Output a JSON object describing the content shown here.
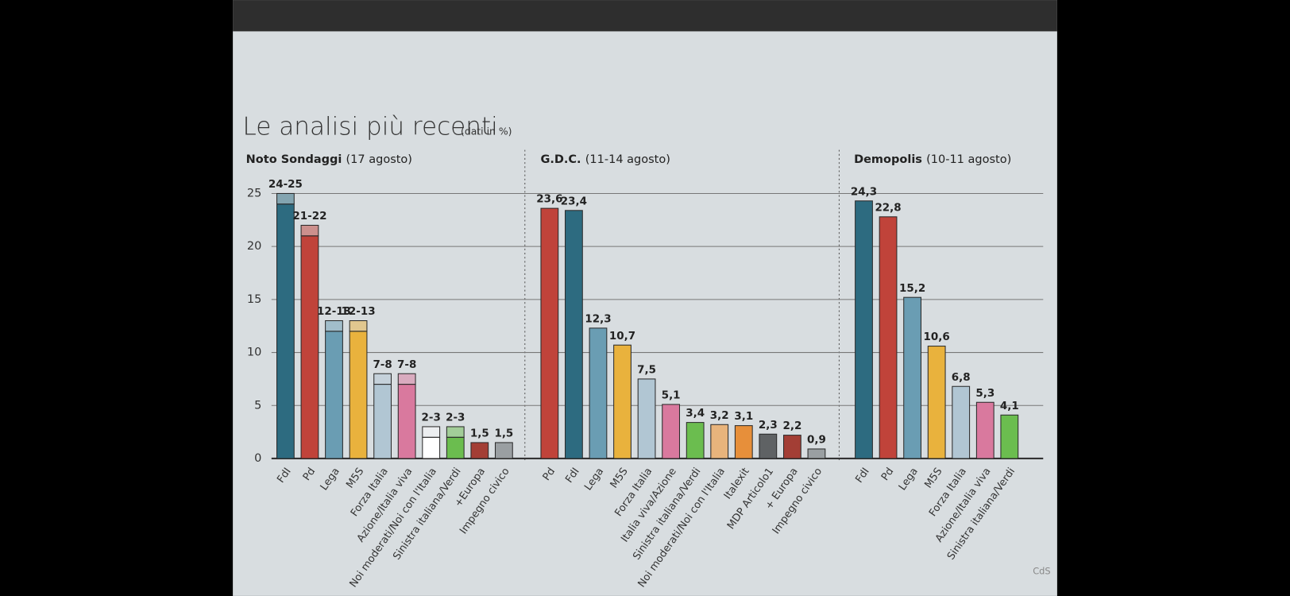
{
  "title": "Le analisi più recenti",
  "title_note": "(dati in %)",
  "source": "CdS",
  "chart_data": [
    {
      "type": "range",
      "name": "Noto Sondaggi",
      "date": "(17 agosto)",
      "categories": [
        "FdI",
        "Pd",
        "Lega",
        "M5S",
        "Forza Italia",
        "Azione/Italia viva",
        "Noi moderati/Noi con l'Italia",
        "Sinistra italiana/Verdi",
        "+Europa",
        "Impegno civico"
      ],
      "low": [
        24,
        21,
        12,
        12,
        7,
        7,
        2,
        2,
        1.5,
        1.5
      ],
      "high": [
        25,
        22,
        13,
        13,
        8,
        8,
        3,
        3,
        null,
        null
      ],
      "value_labels": [
        "24-25",
        "21-22",
        "12-13",
        "12-13",
        "7-8",
        "7-8",
        "2-3",
        "2-3",
        "1,5",
        "1,5"
      ],
      "colors": [
        "#2d6b80",
        "#c0433a",
        "#6a9db3",
        "#e9b23d",
        "#b1c6d3",
        "#d9799e",
        "#ffffff",
        "#6bbd4f",
        "#a33e35",
        "#9a9fa2"
      ],
      "ylim": [
        0,
        25
      ],
      "yticks": [
        0,
        5,
        10,
        15,
        20,
        25
      ],
      "grid": true
    },
    {
      "type": "bar",
      "name": "G.D.C.",
      "date": "(11-14 agosto)",
      "categories": [
        "Pd",
        "FdI",
        "Lega",
        "M5S",
        "Forza Italia",
        "Italia viva/Azione",
        "Sinistra italiana/Verdi",
        "Noi moderati/Noi con l'Italia",
        "Italexit",
        "MDP Articolo1",
        "+ Europa",
        "Impegno civico"
      ],
      "values": [
        23.6,
        23.4,
        12.3,
        10.7,
        7.5,
        5.1,
        3.4,
        3.2,
        3.1,
        2.3,
        2.2,
        0.9
      ],
      "value_labels": [
        "23,6",
        "23,4",
        "12,3",
        "10,7",
        "7,5",
        "5,1",
        "3,4",
        "3,2",
        "3,1",
        "2,3",
        "2,2",
        "0,9"
      ],
      "colors": [
        "#c0433a",
        "#2d6b80",
        "#6a9db3",
        "#e9b23d",
        "#b1c6d3",
        "#d9799e",
        "#6bbd4f",
        "#e8b47c",
        "#e78f3a",
        "#5f6264",
        "#a33e35",
        "#9a9fa2"
      ],
      "ylim": [
        0,
        25
      ]
    },
    {
      "type": "bar",
      "name": "Demopolis",
      "date": "(10-11 agosto)",
      "categories": [
        "FdI",
        "Pd",
        "Lega",
        "M5S",
        "Forza Italia",
        "Azione/Italia viva",
        "Sinistra italiana/Verdi"
      ],
      "values": [
        24.3,
        22.8,
        15.2,
        10.6,
        6.8,
        5.3,
        4.1
      ],
      "value_labels": [
        "24,3",
        "22,8",
        "15,2",
        "10,6",
        "6,8",
        "5,3",
        "4,1"
      ],
      "colors": [
        "#2d6b80",
        "#c0433a",
        "#6a9db3",
        "#e9b23d",
        "#b1c6d3",
        "#d9799e",
        "#6bbd4f"
      ],
      "ylim": [
        0,
        25
      ]
    }
  ]
}
